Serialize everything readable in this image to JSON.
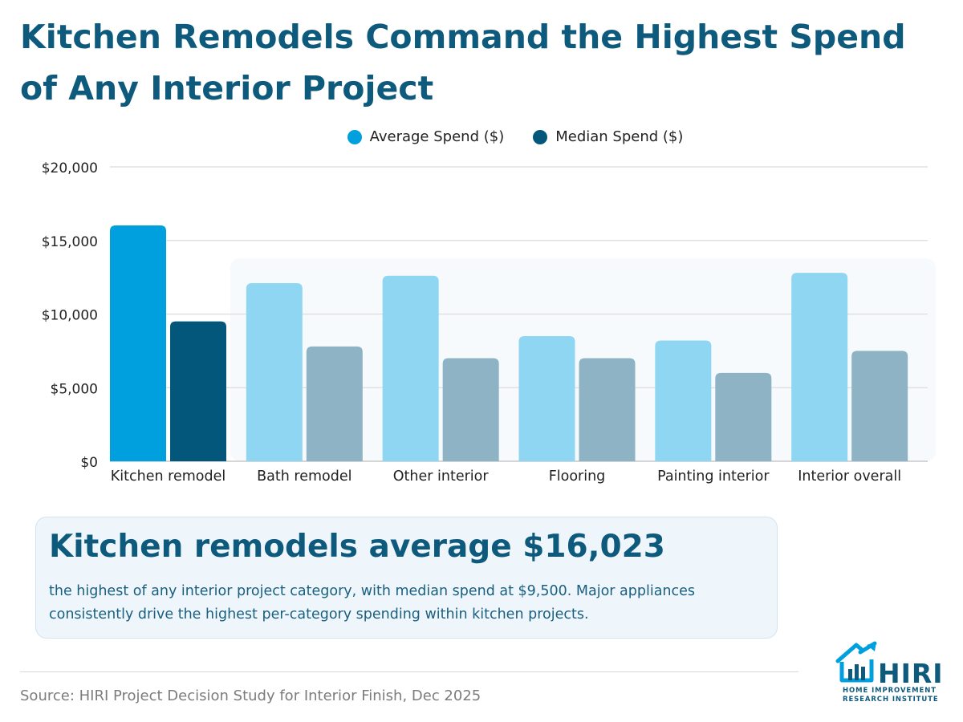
{
  "title": "Kitchen Remodels Command the Highest Spend of Any Interior Project",
  "chart_data": {
    "type": "bar",
    "categories": [
      "Kitchen remodel",
      "Bath remodel",
      "Other interior",
      "Flooring",
      "Painting interior",
      "Interior overall"
    ],
    "series": [
      {
        "name": "Average Spend ($)",
        "values": [
          16023,
          12100,
          12600,
          8500,
          8200,
          12800
        ]
      },
      {
        "name": "Median Spend ($)",
        "values": [
          9500,
          7800,
          7000,
          7000,
          6000,
          7500
        ]
      }
    ],
    "highlight_category": "Kitchen remodel",
    "ylim": [
      0,
      20000
    ],
    "y_ticks": [
      "$0",
      "$5,000",
      "$10,000",
      "$15,000",
      "$20,000"
    ],
    "y_tick_values": [
      0,
      5000,
      10000,
      15000,
      20000
    ],
    "grid": true,
    "legend_position": "top-center",
    "colors": {
      "average_highlight": "#00a0df",
      "median_highlight": "#02577b",
      "average_muted": "#8fd6f2",
      "median_muted": "#8eb3c5",
      "grid": "#dcdcdc"
    }
  },
  "callout": {
    "headline": "Kitchen remodels average $16,023",
    "body": "the highest of any interior project category, with median spend at $9,500. Major appliances consistently drive the highest per-category spending within kitchen projects."
  },
  "source": "Source: HIRI Project Decision Study for Interior Finish, Dec 2025",
  "logo": {
    "wordmark": "HIRI",
    "subtitle": "HOME IMPROVEMENT RESEARCH INSTITUTE",
    "icon": "house-chart-icon",
    "color": "#0d5a7d",
    "icon_color": "#00a0df"
  }
}
